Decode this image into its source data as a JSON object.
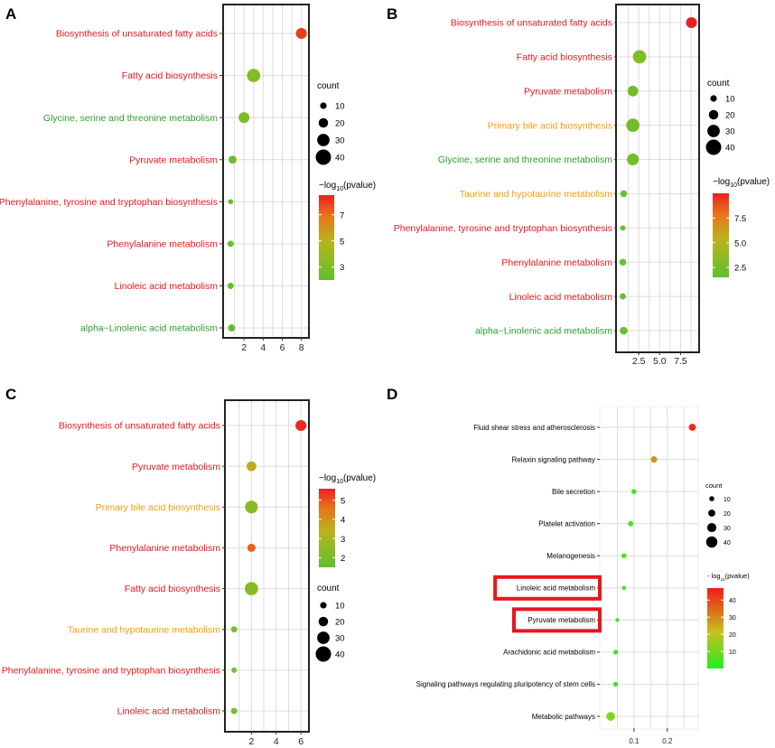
{
  "colors": {
    "red": "#e8161c",
    "orange": "#f39c12",
    "green": "#2ca02c",
    "black": "#000000"
  },
  "chart_data": [
    {
      "panel": "A",
      "type": "scatter",
      "xlabel": "",
      "ylabel": "",
      "x_ticks": [
        "2",
        "4",
        "6",
        "8"
      ],
      "xlim": [
        0,
        8.6
      ],
      "categories": [
        "Biosynthesis of unsaturated fatty acids",
        "Fatty acid biosynthesis",
        "Glycine, serine and threonine metabolism",
        "Pyruvate metabolism",
        "Phenylalanine, tyrosine and tryptophan biosynthesis",
        "Phenylalanine metabolism",
        "Linoleic acid metabolism",
        "alpha−Linolenic acid metabolism"
      ],
      "label_colors": [
        "red",
        "red",
        "green",
        "red",
        "red",
        "red",
        "red",
        "green"
      ],
      "x": [
        8,
        3,
        2,
        0.8,
        0.6,
        0.6,
        0.6,
        0.7
      ],
      "count": [
        25,
        33,
        25,
        15,
        5,
        9,
        9,
        12
      ],
      "pvalue_log": [
        8,
        3.2,
        3.0,
        2.4,
        2.2,
        2.2,
        2.2,
        2.2
      ],
      "size_legend": {
        "title": "count",
        "values": [
          10,
          20,
          30,
          40
        ]
      },
      "color_legend": {
        "title_pre": "−log",
        "title_sub": "10",
        "title_post": "(pvalue)",
        "ticks": [
          "7",
          "5",
          "3"
        ],
        "range": [
          2,
          8.5
        ]
      }
    },
    {
      "panel": "B",
      "type": "scatter",
      "xlabel": "",
      "ylabel": "",
      "x_ticks": [
        "2.5",
        "5.0",
        "7.5"
      ],
      "xlim": [
        0,
        9.5
      ],
      "categories": [
        "Biosynthesis of unsaturated fatty acids",
        "Fatty acid biosynthesis",
        "Pyruvate metabolism",
        "Primary bile acid biosynthesis",
        "Glycine, serine and threonine metabolism",
        "Taurine and hypotaurine metabolism",
        "Phenylalanine, tyrosine and tryptophan biosynthesis",
        "Phenylalanine metabolism",
        "Linoleic acid metabolism",
        "alpha−Linolenic acid metabolism"
      ],
      "label_colors": [
        "red",
        "red",
        "red",
        "orange",
        "green",
        "orange",
        "red",
        "red",
        "red",
        "green"
      ],
      "x": [
        8.8,
        2.6,
        1.8,
        1.8,
        1.8,
        0.7,
        0.6,
        0.6,
        0.6,
        0.7
      ],
      "count": [
        25,
        33,
        24,
        33,
        28,
        11,
        6,
        11,
        9,
        14
      ],
      "pvalue_log": [
        10,
        3.0,
        2.5,
        2.5,
        2.5,
        2.0,
        2.0,
        2.0,
        2.0,
        2.0
      ],
      "size_legend": {
        "title": "count",
        "values": [
          10,
          20,
          30,
          40
        ]
      },
      "color_legend": {
        "title_pre": "−log",
        "title_sub": "10",
        "title_post": "(pvalue)",
        "ticks": [
          "7.5",
          "5.0",
          "2.5"
        ],
        "range": [
          1.5,
          10
        ]
      }
    },
    {
      "panel": "C",
      "type": "scatter",
      "xlabel": "",
      "ylabel": "",
      "x_ticks": [
        "2",
        "4",
        "6"
      ],
      "xlim": [
        0,
        6.5
      ],
      "categories": [
        "Biosynthesis of unsaturated fatty acids",
        "Pyruvate metabolism",
        "Primary bile acid biosynthesis",
        "Phenylalanine metabolism",
        "Fatty acid biosynthesis",
        "Taurine and hypotaurine metabolism",
        "Phenylalanine, tyrosine and tryptophan biosynthesis",
        "Linoleic acid metabolism"
      ],
      "label_colors": [
        "red",
        "red",
        "orange",
        "red",
        "red",
        "orange",
        "red",
        "red"
      ],
      "x": [
        6,
        2,
        2,
        2,
        2,
        0.6,
        0.6,
        0.6
      ],
      "count": [
        25,
        21,
        31,
        16,
        33,
        9,
        6,
        9
      ],
      "pvalue_log": [
        5.5,
        3.5,
        2.3,
        4.8,
        2.3,
        2.0,
        2.0,
        2.0
      ],
      "size_legend": {
        "title": "count",
        "values": [
          10,
          20,
          30,
          40
        ]
      },
      "color_legend": {
        "title_pre": "−log",
        "title_sub": "10",
        "title_post": "(pvalue)",
        "ticks": [
          "5",
          "4",
          "3",
          "2"
        ],
        "range": [
          1.5,
          5.6
        ]
      }
    },
    {
      "panel": "D",
      "type": "scatter",
      "xlabel": "",
      "ylabel": "",
      "x_ticks": [
        "0.1",
        "0.2"
      ],
      "xlim": [
        0,
        0.29
      ],
      "categories": [
        "Fluid shear stress and atherosclerosis",
        "Relaxin signaling pathway",
        "Bile secretion",
        "Platelet activation",
        "Melanogenesis",
        "Linoleic acid metabolism",
        "Pyruvate metabolism",
        "Arachidonic acid metabolism",
        "Signaling pathways regulating pluripotency of stem cells",
        "Metabolic pathways"
      ],
      "label_colors": [
        "black",
        "black",
        "black",
        "black",
        "black",
        "black",
        "black",
        "black",
        "black",
        "black"
      ],
      "highlighted": [
        "Linoleic acid metabolism",
        "Pyruvate metabolism"
      ],
      "x": [
        0.275,
        0.16,
        0.1,
        0.09,
        0.07,
        0.07,
        0.05,
        0.045,
        0.045,
        0.03
      ],
      "count": [
        20,
        17,
        10,
        12,
        10,
        6,
        5,
        9,
        9,
        28
      ],
      "pvalue_log": [
        45,
        28,
        5,
        5,
        5,
        5,
        5,
        5,
        5,
        12
      ],
      "size_legend": {
        "title": "count",
        "values": [
          10,
          20,
          30,
          40
        ]
      },
      "color_legend": {
        "title_pre": "- log",
        "title_sub": "10",
        "title_post": "(pvalue)",
        "ticks": [
          "40",
          "30",
          "20",
          "10"
        ],
        "range": [
          0,
          47
        ]
      }
    }
  ]
}
